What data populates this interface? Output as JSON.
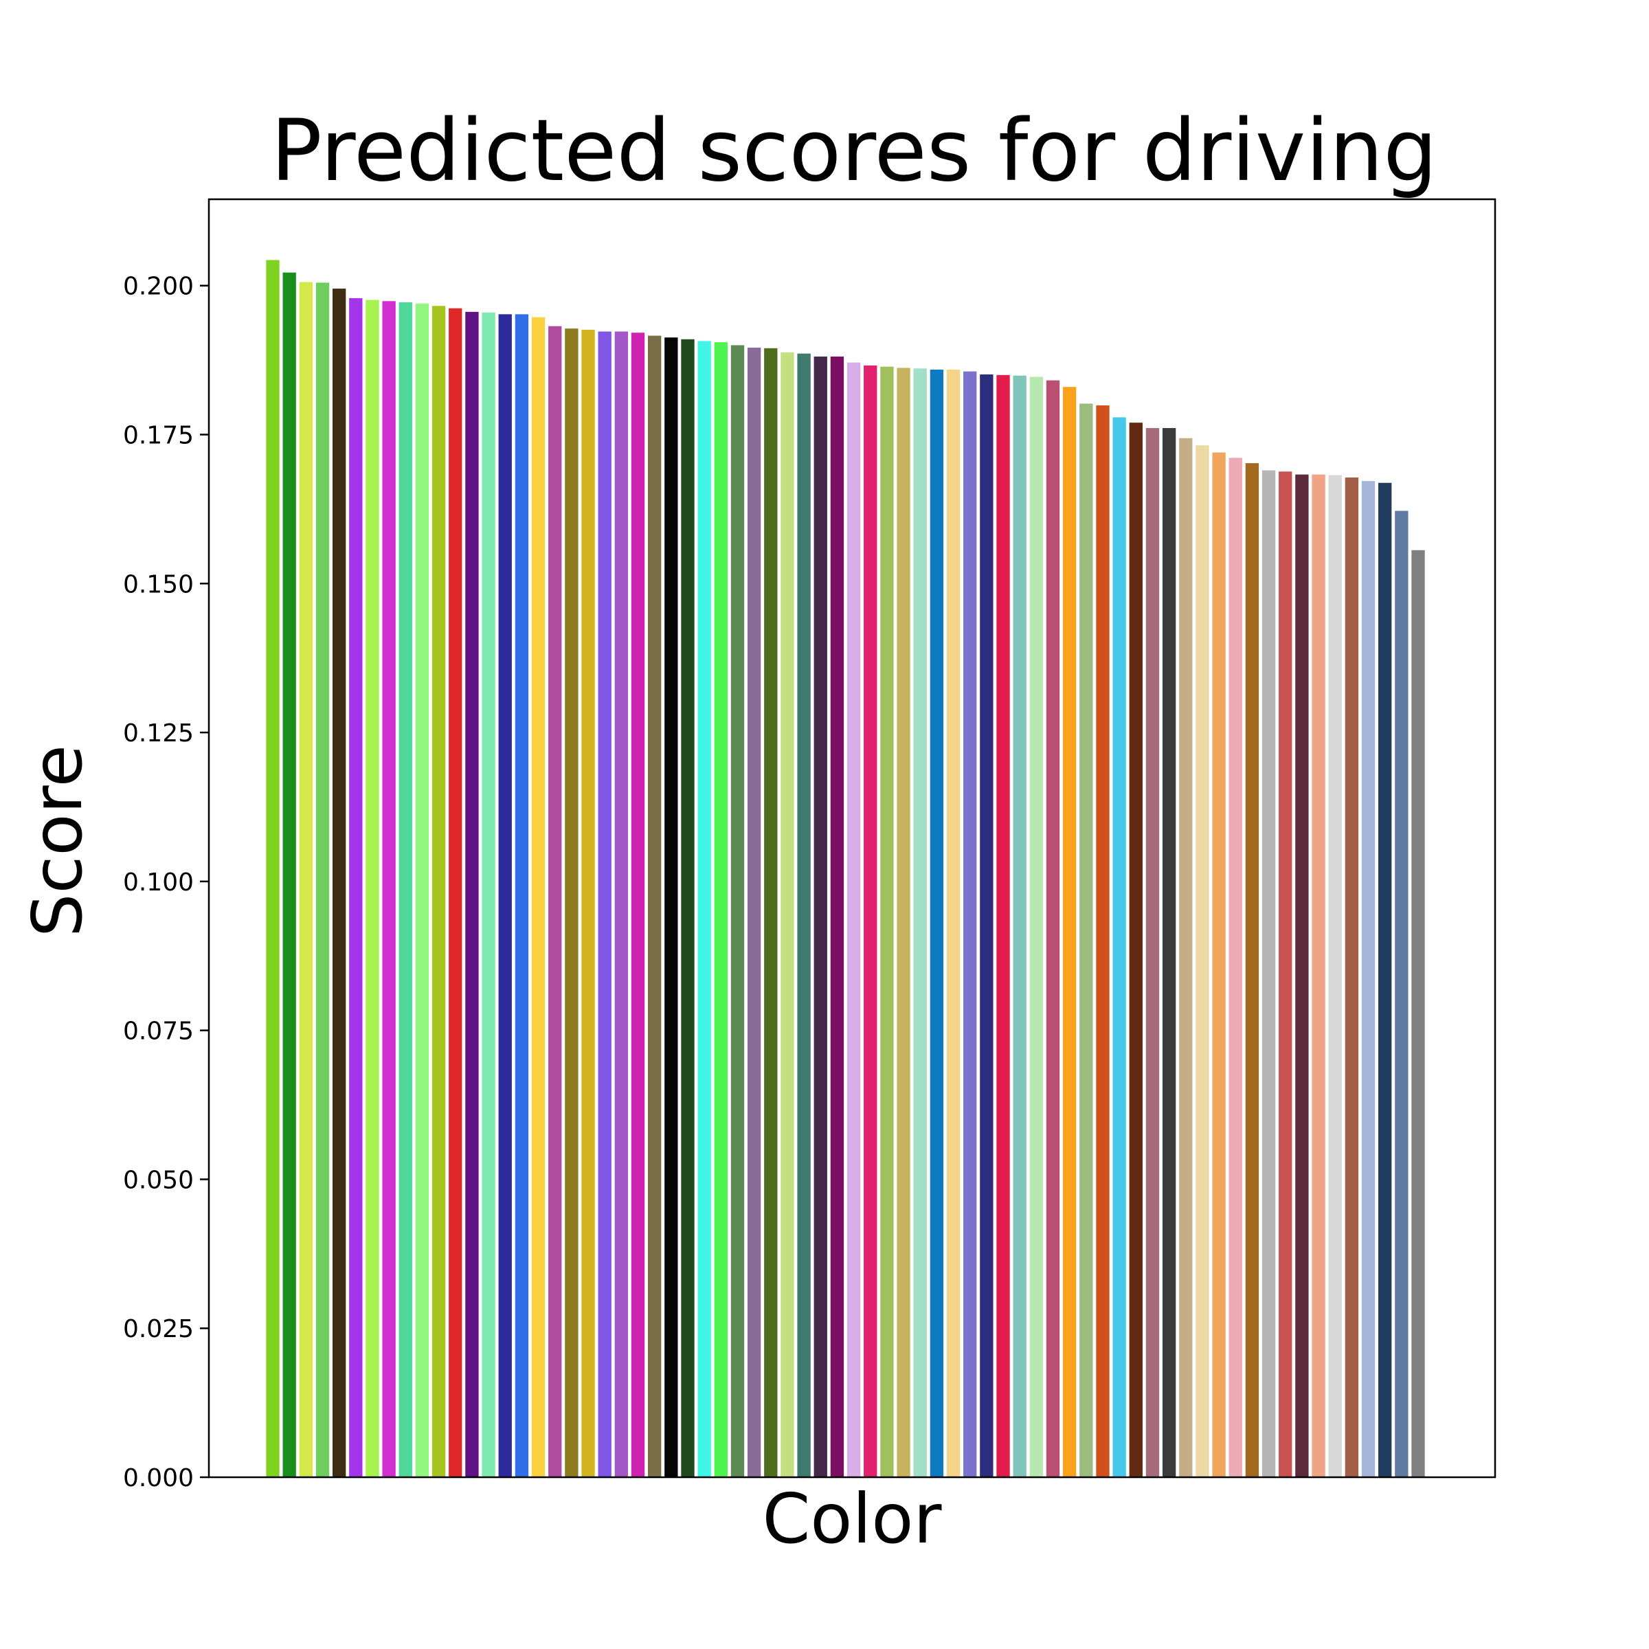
{
  "chart_data": {
    "type": "bar",
    "title": "Predicted scores for driving",
    "xlabel": "Color",
    "ylabel": "Score",
    "ylim": [
      0,
      0.2145
    ],
    "yticks": [
      "0.000",
      "0.025",
      "0.050",
      "0.075",
      "0.100",
      "0.125",
      "0.150",
      "0.175",
      "0.200"
    ],
    "ytick_values": [
      0,
      0.025,
      0.05,
      0.075,
      0.1,
      0.125,
      0.15,
      0.175,
      0.2
    ],
    "grid": false,
    "legend": "none",
    "values": [
      0.2043,
      0.2022,
      0.2006,
      0.2005,
      0.1995,
      0.1979,
      0.1976,
      0.1974,
      0.1972,
      0.197,
      0.1966,
      0.1962,
      0.1956,
      0.1955,
      0.1952,
      0.1952,
      0.1947,
      0.1932,
      0.1928,
      0.1926,
      0.1923,
      0.1923,
      0.1921,
      0.1916,
      0.1913,
      0.191,
      0.1907,
      0.1905,
      0.19,
      0.1896,
      0.1895,
      0.1888,
      0.1886,
      0.1881,
      0.1881,
      0.1871,
      0.1866,
      0.1864,
      0.1862,
      0.1861,
      0.1859,
      0.1859,
      0.1856,
      0.1851,
      0.185,
      0.1849,
      0.1847,
      0.1841,
      0.183,
      0.1802,
      0.1799,
      0.1779,
      0.177,
      0.1761,
      0.1761,
      0.1744,
      0.1732,
      0.172,
      0.1711,
      0.1702,
      0.169,
      0.1688,
      0.1683,
      0.1683,
      0.1682,
      0.1678,
      0.1672,
      0.1669,
      0.1622,
      0.1556
    ],
    "colors": [
      "#7ed321",
      "#188f1c",
      "#d4e84a",
      "#6ccf5c",
      "#3f2f12",
      "#a535eb",
      "#a6f24f",
      "#d12fcf",
      "#4fd89a",
      "#92f77f",
      "#a8c41e",
      "#e02828",
      "#5e1386",
      "#7debb0",
      "#2d2a9d",
      "#2f6ee8",
      "#fcd141",
      "#b04ba0",
      "#8c7c1d",
      "#d4b320",
      "#8056e6",
      "#a457c8",
      "#cf22b0",
      "#7a6e47",
      "#050505",
      "#1f4a1b",
      "#3ff5e6",
      "#4ef54e",
      "#5c8a52",
      "#8a6b98",
      "#4f6e1d",
      "#c4e07e",
      "#3e7a6e",
      "#47284d",
      "#7c0e63",
      "#d9aee6",
      "#e2216f",
      "#a0c05d",
      "#c7b25d",
      "#a1dfc8",
      "#0d7ac2",
      "#f4d587",
      "#7a72cc",
      "#2c2e7d",
      "#e31d4b",
      "#80c5b9",
      "#b7e8b0",
      "#bb4f72",
      "#f9a21a",
      "#9cbb7f",
      "#d0521a",
      "#48c8e8",
      "#632a12",
      "#a66b7b",
      "#3b3b3b",
      "#c4ae88",
      "#ecd9a4",
      "#f0a55c",
      "#eea9b6",
      "#a36a1f",
      "#b5b5b5",
      "#c95251",
      "#5c2a3a",
      "#f0a486",
      "#d8d8d8",
      "#a25e47",
      "#a6b6da",
      "#213d5e",
      "#617ca3",
      "#808080"
    ]
  }
}
